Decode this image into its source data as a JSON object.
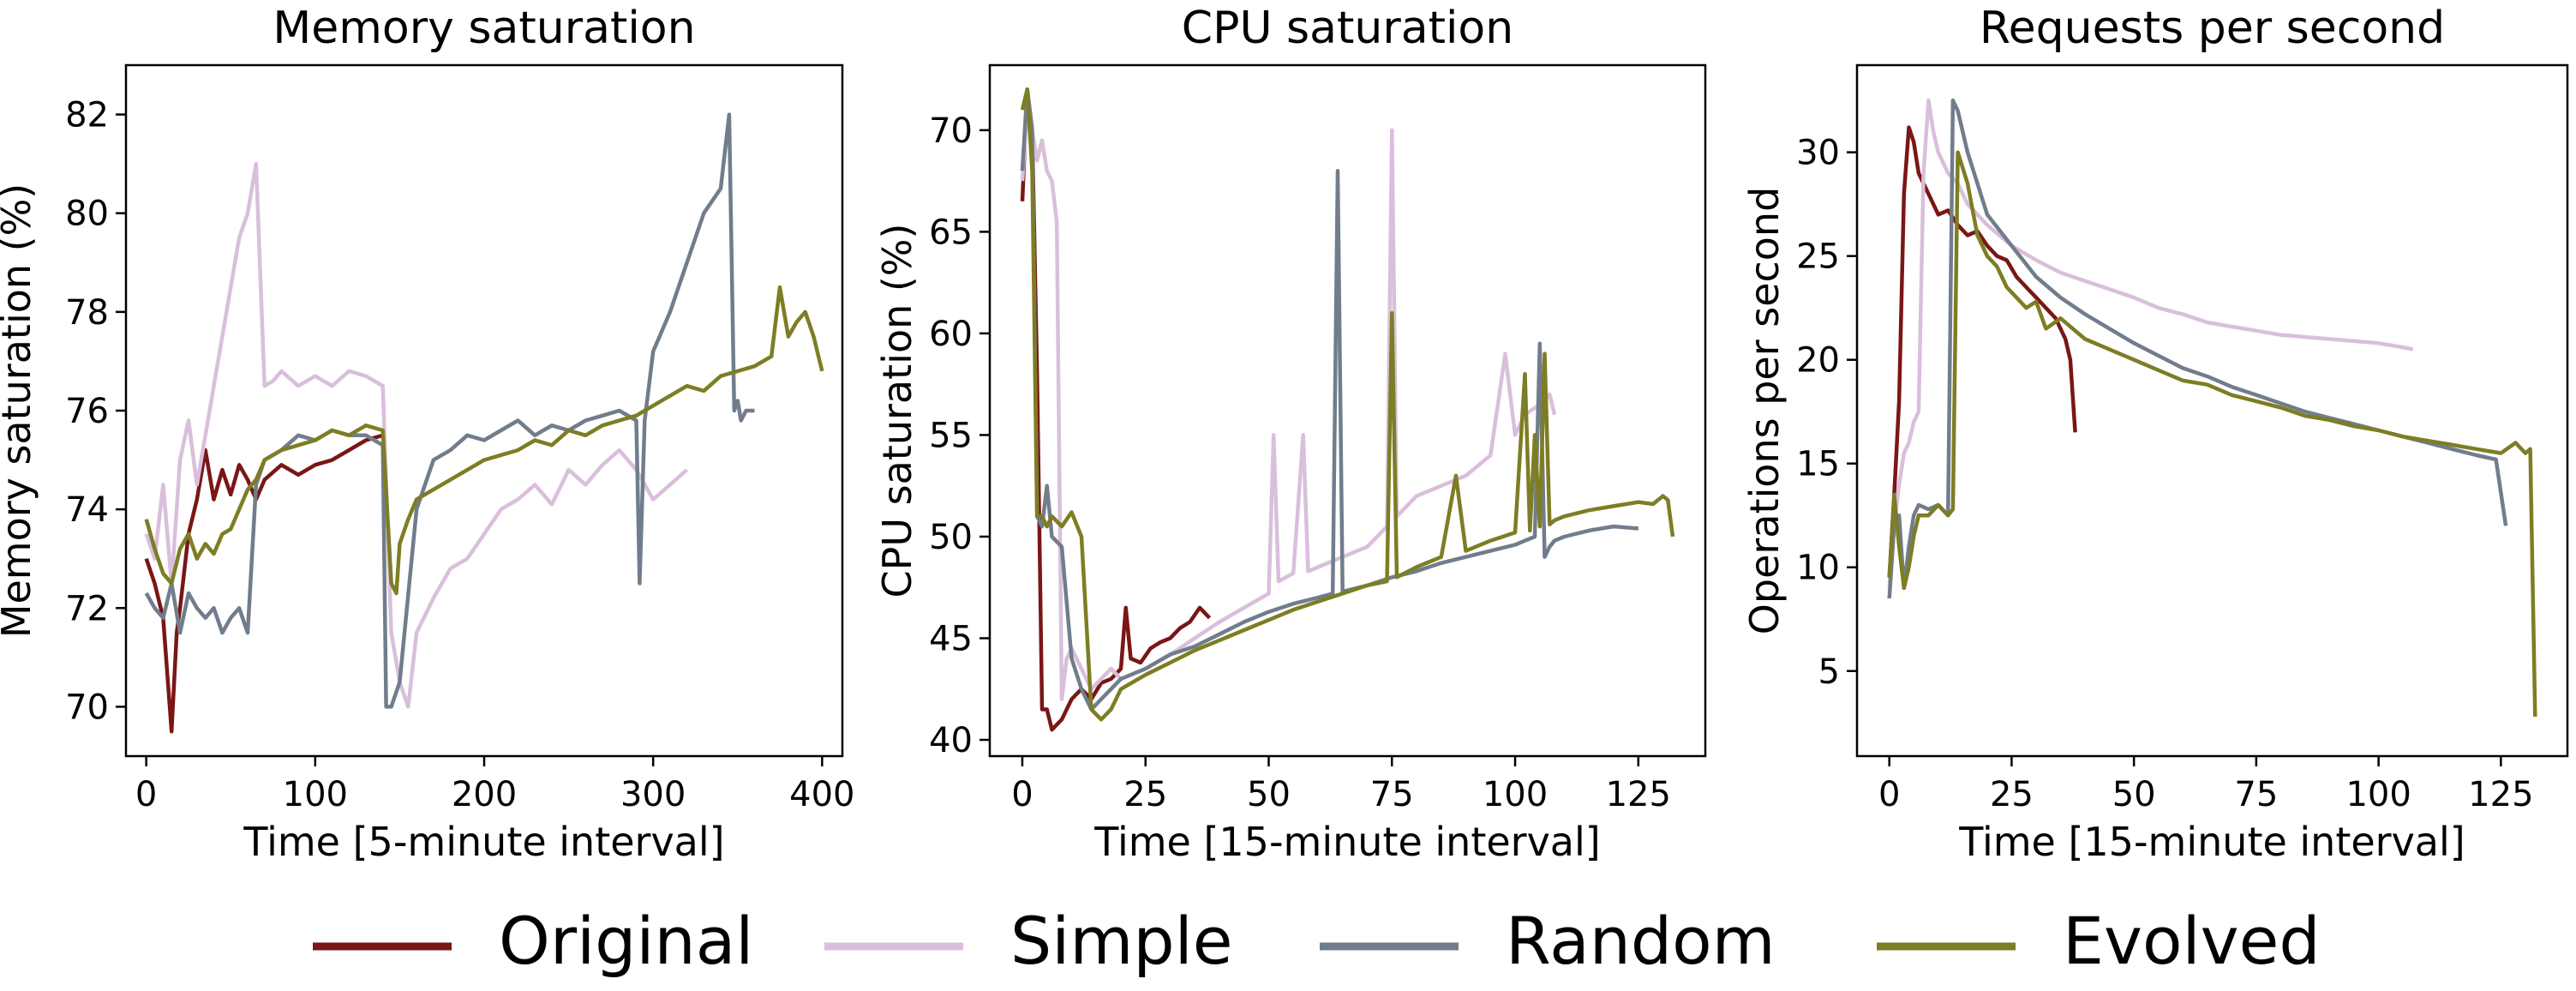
{
  "series_styles": [
    {
      "name": "Original",
      "color": "#7a1616"
    },
    {
      "name": "Simple",
      "color": "#d9bfdc"
    },
    {
      "name": "Random",
      "color": "#717d8c"
    },
    {
      "name": "Evolved",
      "color": "#7d7d24"
    }
  ],
  "legend": {
    "placement": "bottom-center",
    "labels": [
      "Original",
      "Simple",
      "Random",
      "Evolved"
    ]
  },
  "chart_data": [
    {
      "type": "line",
      "title": "Memory saturation",
      "xlabel": "Time [5-minute interval]",
      "ylabel": "Memory saturation (%)",
      "xlim": [
        -12,
        412
      ],
      "ylim": [
        69,
        83
      ],
      "xticks": [
        0,
        100,
        200,
        300,
        400
      ],
      "yticks": [
        70,
        72,
        74,
        76,
        78,
        80,
        82
      ],
      "grid": false,
      "series": [
        {
          "name": "Original",
          "x": [
            0,
            5,
            10,
            15,
            18,
            20,
            25,
            30,
            35,
            40,
            45,
            50,
            55,
            60,
            65,
            70,
            80,
            90,
            100,
            110,
            120,
            130,
            140
          ],
          "y": [
            73,
            72.5,
            71.8,
            69.5,
            71.5,
            72,
            73.5,
            74.2,
            75.2,
            74.2,
            74.8,
            74.3,
            74.9,
            74.6,
            74.2,
            74.6,
            74.9,
            74.7,
            74.9,
            75,
            75.2,
            75.4,
            75.5
          ]
        },
        {
          "name": "Simple",
          "x": [
            0,
            5,
            10,
            15,
            20,
            25,
            30,
            35,
            40,
            45,
            50,
            55,
            60,
            65,
            70,
            75,
            80,
            90,
            100,
            110,
            120,
            130,
            140,
            145,
            150,
            155,
            160,
            170,
            180,
            190,
            200,
            210,
            220,
            230,
            240,
            250,
            260,
            270,
            280,
            290,
            300,
            310,
            320
          ],
          "y": [
            73.5,
            73,
            74.5,
            72.5,
            75,
            75.8,
            74.5,
            75.5,
            76.5,
            77.5,
            78.5,
            79.5,
            80,
            81,
            76.5,
            76.6,
            76.8,
            76.5,
            76.7,
            76.5,
            76.8,
            76.7,
            76.5,
            71.5,
            70.5,
            70,
            71.5,
            72.2,
            72.8,
            73,
            73.5,
            74,
            74.2,
            74.5,
            74.1,
            74.8,
            74.5,
            74.9,
            75.2,
            74.8,
            74.2,
            74.5,
            74.8
          ]
        },
        {
          "name": "Random",
          "x": [
            0,
            5,
            10,
            15,
            20,
            25,
            30,
            35,
            40,
            45,
            50,
            55,
            60,
            65,
            70,
            80,
            90,
            100,
            110,
            120,
            130,
            140,
            142,
            145,
            150,
            160,
            170,
            180,
            190,
            200,
            210,
            220,
            230,
            240,
            250,
            260,
            270,
            280,
            290,
            292,
            295,
            300,
            310,
            320,
            330,
            340,
            345,
            348,
            350,
            352,
            355,
            360
          ],
          "y": [
            72.3,
            72,
            71.8,
            72.5,
            71.5,
            72.3,
            72,
            71.8,
            72,
            71.5,
            71.8,
            72,
            71.5,
            74.5,
            75,
            75.2,
            75.5,
            75.4,
            75.6,
            75.5,
            75.5,
            75.3,
            70,
            70,
            70.5,
            74,
            75,
            75.2,
            75.5,
            75.4,
            75.6,
            75.8,
            75.5,
            75.7,
            75.6,
            75.8,
            75.9,
            76,
            75.8,
            72.5,
            75.8,
            77.2,
            78,
            79,
            80,
            80.5,
            82,
            76,
            76.2,
            75.8,
            76,
            76
          ]
        },
        {
          "name": "Evolved",
          "x": [
            0,
            5,
            10,
            15,
            20,
            25,
            30,
            35,
            40,
            45,
            50,
            55,
            60,
            65,
            70,
            80,
            90,
            100,
            110,
            120,
            130,
            140,
            145,
            148,
            150,
            155,
            160,
            170,
            180,
            190,
            200,
            210,
            220,
            230,
            240,
            250,
            260,
            270,
            280,
            290,
            300,
            310,
            320,
            330,
            340,
            350,
            360,
            370,
            375,
            380,
            385,
            390,
            395,
            400
          ],
          "y": [
            73.8,
            73.2,
            72.7,
            72.5,
            73.2,
            73.5,
            73,
            73.3,
            73.1,
            73.5,
            73.6,
            74,
            74.4,
            74.6,
            75,
            75.2,
            75.3,
            75.4,
            75.6,
            75.5,
            75.7,
            75.6,
            72.5,
            72.3,
            73.3,
            73.8,
            74.2,
            74.4,
            74.6,
            74.8,
            75,
            75.1,
            75.2,
            75.4,
            75.3,
            75.6,
            75.5,
            75.7,
            75.8,
            75.9,
            76.1,
            76.3,
            76.5,
            76.4,
            76.7,
            76.8,
            76.9,
            77.1,
            78.5,
            77.5,
            77.8,
            78,
            77.5,
            76.8
          ]
        }
      ]
    },
    {
      "type": "line",
      "title": "CPU saturation",
      "xlabel": "Time [15-minute interval]",
      "ylabel": "CPU saturation (%)",
      "xlim": [
        -6.6,
        138.6
      ],
      "ylim": [
        39.2,
        73.2
      ],
      "xticks": [
        0,
        25,
        50,
        75,
        100,
        125
      ],
      "yticks": [
        40,
        45,
        50,
        55,
        60,
        65,
        70
      ],
      "grid": false,
      "series": [
        {
          "name": "Original",
          "x": [
            0,
            1,
            2,
            3,
            4,
            5,
            6,
            8,
            10,
            12,
            14,
            16,
            18,
            20,
            21,
            22,
            24,
            26,
            28,
            30,
            32,
            34,
            36,
            38
          ],
          "y": [
            66.5,
            72,
            70,
            58,
            41.5,
            41.5,
            40.5,
            41,
            42,
            42.5,
            42,
            42.8,
            43,
            43.5,
            46.5,
            44,
            43.8,
            44.5,
            44.8,
            45,
            45.5,
            45.8,
            46.5,
            46
          ]
        },
        {
          "name": "Simple",
          "x": [
            0,
            1,
            2,
            3,
            4,
            5,
            6,
            7,
            8,
            9,
            10,
            12,
            14,
            16,
            18,
            20,
            25,
            30,
            35,
            40,
            45,
            50,
            51,
            52,
            55,
            57,
            58,
            60,
            65,
            70,
            74,
            75,
            76,
            80,
            85,
            90,
            95,
            98,
            100,
            102,
            105,
            107,
            108
          ],
          "y": [
            67.5,
            71,
            70,
            68.5,
            69.5,
            68,
            67.5,
            65.5,
            42,
            44,
            44.5,
            43.5,
            42.5,
            43,
            43.5,
            43,
            43.5,
            44.2,
            45,
            45.8,
            46.5,
            47.2,
            55,
            47.8,
            48.2,
            55,
            48.3,
            48.5,
            49,
            49.5,
            50.5,
            70,
            51,
            52,
            52.5,
            53,
            54,
            59,
            55,
            56,
            56.5,
            57,
            56
          ]
        },
        {
          "name": "Random",
          "x": [
            0,
            1,
            2,
            3,
            4,
            5,
            6,
            8,
            10,
            12,
            14,
            16,
            18,
            20,
            25,
            30,
            35,
            40,
            45,
            50,
            55,
            60,
            63,
            64,
            65,
            70,
            75,
            80,
            85,
            90,
            95,
            100,
            104,
            105,
            106,
            107,
            108,
            110,
            115,
            120,
            125
          ],
          "y": [
            68,
            72,
            70,
            51,
            50.5,
            52.5,
            50,
            49.5,
            44,
            42.5,
            41.5,
            42,
            42.5,
            43,
            43.5,
            44.2,
            44.6,
            45.2,
            45.8,
            46.3,
            46.7,
            47,
            47.2,
            68,
            47.3,
            47.6,
            48,
            48.3,
            48.7,
            49,
            49.3,
            49.6,
            50,
            59.5,
            49,
            49.5,
            49.8,
            50,
            50.3,
            50.5,
            50.4
          ]
        },
        {
          "name": "Evolved",
          "x": [
            0,
            1,
            2,
            3,
            4,
            5,
            6,
            8,
            10,
            12,
            14,
            16,
            18,
            20,
            25,
            30,
            35,
            40,
            45,
            50,
            55,
            60,
            65,
            70,
            74,
            75,
            76,
            80,
            85,
            88,
            90,
            95,
            100,
            102,
            103,
            104,
            105,
            106,
            107,
            108,
            110,
            115,
            120,
            125,
            128,
            130,
            131,
            132
          ],
          "y": [
            71,
            72,
            68,
            51,
            51,
            50.5,
            51,
            50.5,
            51.2,
            50,
            41.5,
            41,
            41.5,
            42.5,
            43.2,
            43.8,
            44.4,
            44.9,
            45.4,
            45.9,
            46.4,
            46.8,
            47.2,
            47.6,
            47.8,
            61,
            48,
            48.5,
            49,
            53,
            49.3,
            49.8,
            50.2,
            58,
            50.3,
            55,
            50.5,
            59,
            50.6,
            50.8,
            51,
            51.3,
            51.5,
            51.7,
            51.6,
            52,
            51.8,
            50
          ]
        }
      ]
    },
    {
      "type": "line",
      "title": "Requests per second",
      "xlabel": "Time [15-minute interval]",
      "ylabel": "Operations per second",
      "xlim": [
        -6.6,
        138.6
      ],
      "ylim": [
        0.9,
        34.2
      ],
      "xticks": [
        0,
        25,
        50,
        75,
        100,
        125
      ],
      "yticks": [
        5,
        10,
        15,
        20,
        25,
        30
      ],
      "grid": false,
      "series": [
        {
          "name": "Original",
          "x": [
            0,
            1,
            2,
            3,
            4,
            5,
            6,
            7,
            8,
            9,
            10,
            12,
            14,
            16,
            18,
            20,
            22,
            24,
            26,
            28,
            30,
            32,
            34,
            35,
            36,
            37,
            38
          ],
          "y": [
            9.5,
            13.5,
            18,
            28,
            31.2,
            30.5,
            29,
            28.5,
            28,
            27.5,
            27,
            27.2,
            26.5,
            26,
            26.2,
            25.5,
            25,
            24.8,
            24,
            23.5,
            23,
            22.5,
            22,
            21.5,
            21,
            20,
            16.5
          ]
        },
        {
          "name": "Simple",
          "x": [
            0,
            1,
            2,
            3,
            4,
            5,
            6,
            7,
            8,
            9,
            10,
            12,
            14,
            16,
            18,
            20,
            25,
            30,
            35,
            40,
            45,
            50,
            55,
            60,
            65,
            70,
            75,
            80,
            85,
            90,
            95,
            100,
            105,
            107
          ],
          "y": [
            9,
            12,
            14,
            15.5,
            16,
            17,
            17.5,
            29,
            32.5,
            31,
            30,
            29,
            28.5,
            27.5,
            27,
            26.5,
            25.5,
            24.8,
            24.2,
            23.8,
            23.4,
            23,
            22.5,
            22.2,
            21.8,
            21.6,
            21.4,
            21.2,
            21.1,
            21,
            20.9,
            20.8,
            20.6,
            20.5
          ]
        },
        {
          "name": "Random",
          "x": [
            0,
            1,
            2,
            3,
            4,
            5,
            6,
            8,
            10,
            12,
            13,
            14,
            16,
            18,
            20,
            25,
            30,
            35,
            40,
            45,
            50,
            55,
            60,
            65,
            70,
            75,
            80,
            85,
            90,
            95,
            100,
            105,
            110,
            115,
            120,
            124,
            126
          ],
          "y": [
            8.5,
            12,
            12.5,
            9,
            11,
            12.5,
            13,
            12.8,
            13,
            12.5,
            32.5,
            32,
            30,
            28.5,
            27,
            25.5,
            24,
            23,
            22.2,
            21.5,
            20.8,
            20.2,
            19.6,
            19.2,
            18.7,
            18.3,
            17.9,
            17.5,
            17.2,
            16.9,
            16.6,
            16.3,
            16,
            15.7,
            15.4,
            15.2,
            12
          ]
        },
        {
          "name": "Evolved",
          "x": [
            0,
            1,
            2,
            3,
            4,
            5,
            6,
            8,
            10,
            12,
            13,
            14,
            16,
            18,
            20,
            22,
            24,
            26,
            28,
            30,
            32,
            35,
            40,
            45,
            50,
            55,
            60,
            65,
            70,
            75,
            80,
            85,
            90,
            95,
            100,
            105,
            110,
            115,
            120,
            125,
            128,
            130,
            131,
            132
          ],
          "y": [
            9.5,
            13.5,
            11,
            9,
            10,
            11.5,
            12.5,
            12.5,
            13,
            12.5,
            12.8,
            30,
            28.5,
            26,
            25,
            24.5,
            23.5,
            23,
            22.5,
            22.8,
            21.5,
            22,
            21,
            20.5,
            20,
            19.5,
            19,
            18.8,
            18.3,
            18,
            17.7,
            17.3,
            17.1,
            16.8,
            16.6,
            16.3,
            16.1,
            15.9,
            15.7,
            15.5,
            16,
            15.5,
            15.7,
            2.8
          ]
        }
      ]
    }
  ]
}
